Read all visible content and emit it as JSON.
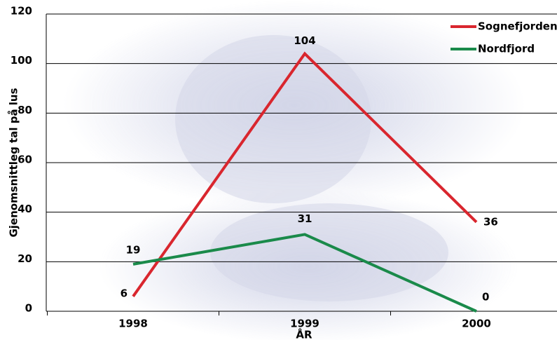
{
  "chart_data": {
    "type": "line",
    "y_label": "Gjenomsnittleg tal på lus",
    "x_label": "ÅR",
    "categories": [
      "1998",
      "1999",
      "2000"
    ],
    "series": [
      {
        "name": "Sognefjorden",
        "color": "#d9262e",
        "values": [
          6,
          104,
          36
        ]
      },
      {
        "name": "Nordfjord",
        "color": "#1a8a4a",
        "values": [
          19,
          31,
          0
        ]
      }
    ],
    "ylim": [
      0,
      120
    ],
    "yticks": [
      0,
      20,
      40,
      60,
      80,
      100,
      120
    ],
    "grid": true,
    "legend": "top-right"
  }
}
